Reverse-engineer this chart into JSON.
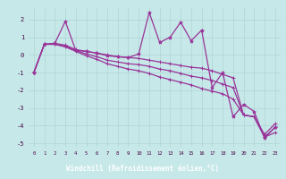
{
  "title": "",
  "xlabel": "Windchill (Refroidissement éolien,°C)",
  "ylabel": "",
  "bg_color": "#c6e8e8",
  "xlabel_bg": "#9966aa",
  "grid_color": "#b0d4d4",
  "line_color": "#993399",
  "xlim": [
    -0.5,
    23.5
  ],
  "ylim": [
    -5.2,
    2.7
  ],
  "yticks": [
    -5,
    -4,
    -3,
    -2,
    -1,
    0,
    1,
    2
  ],
  "xticks": [
    0,
    1,
    2,
    3,
    4,
    5,
    6,
    7,
    8,
    9,
    10,
    11,
    12,
    13,
    14,
    15,
    16,
    17,
    18,
    19,
    20,
    21,
    22,
    23
  ],
  "series_jagged": [
    -1.0,
    0.6,
    0.65,
    1.9,
    0.25,
    0.2,
    0.1,
    -0.05,
    -0.1,
    -0.15,
    0.05,
    2.4,
    0.7,
    1.0,
    1.85,
    0.8,
    1.4,
    -1.85,
    -1.0,
    -3.5,
    -2.8,
    -3.2,
    -4.7,
    -4.1
  ],
  "series_upper": [
    -1.0,
    0.6,
    0.65,
    0.55,
    0.3,
    0.2,
    0.1,
    0.0,
    -0.1,
    -0.15,
    -0.2,
    -0.3,
    -0.4,
    -0.5,
    -0.6,
    -0.7,
    -0.75,
    -0.9,
    -1.1,
    -1.3,
    -3.4,
    -3.5,
    -4.5,
    -3.9
  ],
  "series_mid": [
    -1.0,
    0.6,
    0.6,
    0.5,
    0.25,
    0.05,
    -0.1,
    -0.3,
    -0.4,
    -0.5,
    -0.55,
    -0.65,
    -0.8,
    -0.9,
    -1.05,
    -1.2,
    -1.3,
    -1.45,
    -1.65,
    -1.85,
    -3.4,
    -3.5,
    -4.65,
    -4.1
  ],
  "series_lower": [
    -1.0,
    0.6,
    0.6,
    0.45,
    0.2,
    -0.05,
    -0.25,
    -0.5,
    -0.65,
    -0.8,
    -0.9,
    -1.05,
    -1.25,
    -1.4,
    -1.55,
    -1.7,
    -1.9,
    -2.05,
    -2.2,
    -2.5,
    -3.4,
    -3.5,
    -4.65,
    -4.4
  ]
}
